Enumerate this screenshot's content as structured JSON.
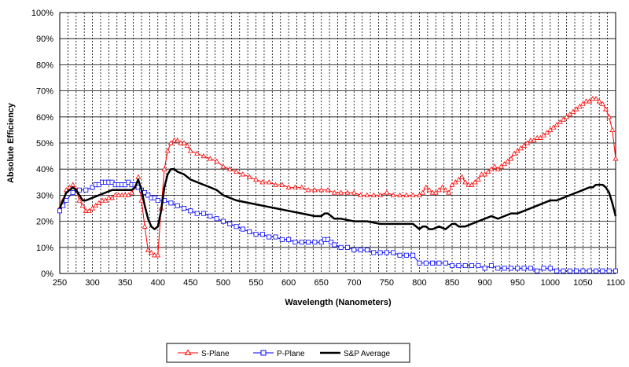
{
  "chart_data": {
    "type": "line",
    "title": "",
    "xlabel": "Wavelength (Nanometers)",
    "ylabel": "Absolute Efficiency",
    "xlim": [
      250,
      1100
    ],
    "ylim": [
      0,
      100
    ],
    "xticks": [
      250,
      300,
      350,
      400,
      450,
      500,
      550,
      600,
      650,
      700,
      750,
      800,
      850,
      900,
      950,
      1000,
      1050,
      1100
    ],
    "yticks": [
      0,
      10,
      20,
      30,
      40,
      50,
      60,
      70,
      80,
      90,
      100
    ],
    "ytick_labels": [
      "0%",
      "10%",
      "20%",
      "30%",
      "40%",
      "50%",
      "60%",
      "70%",
      "80%",
      "90%",
      "100%"
    ],
    "x_grid_step": 12.5,
    "grid": true,
    "legend_position": "bottom-center",
    "series": [
      {
        "name": "S-Plane",
        "color": "#ff0000",
        "marker": "triangle",
        "x": [
          250,
          255,
          260,
          265,
          270,
          275,
          280,
          285,
          290,
          295,
          300,
          305,
          310,
          315,
          320,
          325,
          330,
          335,
          340,
          345,
          350,
          355,
          360,
          365,
          370,
          375,
          380,
          385,
          390,
          395,
          400,
          405,
          410,
          415,
          420,
          425,
          430,
          435,
          440,
          445,
          450,
          460,
          470,
          480,
          490,
          500,
          510,
          520,
          530,
          540,
          550,
          560,
          570,
          580,
          590,
          600,
          610,
          620,
          630,
          640,
          650,
          660,
          670,
          680,
          690,
          700,
          710,
          720,
          730,
          740,
          750,
          760,
          770,
          780,
          790,
          800,
          805,
          810,
          815,
          820,
          825,
          830,
          835,
          840,
          845,
          850,
          855,
          860,
          865,
          870,
          875,
          880,
          885,
          890,
          895,
          900,
          905,
          910,
          915,
          920,
          925,
          930,
          935,
          940,
          945,
          950,
          955,
          960,
          965,
          970,
          975,
          980,
          985,
          990,
          995,
          1000,
          1005,
          1010,
          1015,
          1020,
          1025,
          1030,
          1035,
          1040,
          1045,
          1050,
          1055,
          1060,
          1065,
          1070,
          1075,
          1080,
          1085,
          1090,
          1095,
          1100
        ],
        "values": [
          25,
          28,
          32,
          33,
          34,
          32,
          28,
          26,
          24,
          24,
          25,
          26,
          27,
          28,
          28,
          29,
          29,
          30,
          30,
          30,
          30,
          30,
          31,
          33,
          37,
          28,
          18,
          9,
          8,
          7,
          7,
          25,
          40,
          47,
          50,
          51,
          51,
          50,
          50,
          49,
          47,
          46,
          45,
          44,
          43,
          41,
          40,
          39,
          38,
          37,
          36,
          35,
          35,
          34,
          34,
          33,
          33,
          33,
          32,
          32,
          32,
          32,
          31,
          31,
          31,
          31,
          30,
          30,
          30,
          30,
          31,
          30,
          30,
          30,
          30,
          30,
          31,
          33,
          32,
          31,
          31,
          32,
          33,
          32,
          31,
          34,
          35,
          36,
          37,
          35,
          34,
          34,
          35,
          36,
          38,
          38,
          39,
          40,
          41,
          40,
          41,
          42,
          43,
          44,
          46,
          47,
          48,
          49,
          50,
          51,
          51,
          52,
          52,
          53,
          54,
          55,
          56,
          57,
          58,
          59,
          60,
          61,
          62,
          63,
          64,
          65,
          66,
          66,
          67,
          67,
          66,
          65,
          63,
          60,
          55,
          44
        ]
      },
      {
        "name": "P-Plane",
        "color": "#0000ff",
        "marker": "square",
        "x": [
          250,
          255,
          260,
          270,
          280,
          290,
          300,
          305,
          310,
          315,
          320,
          325,
          330,
          335,
          340,
          345,
          350,
          355,
          360,
          365,
          370,
          375,
          380,
          385,
          390,
          395,
          400,
          410,
          420,
          430,
          440,
          450,
          460,
          470,
          480,
          490,
          500,
          510,
          520,
          530,
          540,
          550,
          560,
          570,
          580,
          590,
          600,
          610,
          620,
          630,
          640,
          650,
          655,
          660,
          665,
          670,
          680,
          690,
          700,
          710,
          720,
          730,
          740,
          750,
          760,
          770,
          780,
          790,
          800,
          810,
          820,
          830,
          840,
          850,
          860,
          870,
          880,
          890,
          900,
          910,
          920,
          930,
          940,
          950,
          960,
          970,
          980,
          990,
          1000,
          1010,
          1020,
          1030,
          1040,
          1050,
          1060,
          1070,
          1080,
          1090,
          1100
        ],
        "values": [
          24,
          26,
          28,
          31,
          32,
          32,
          33,
          34,
          34,
          35,
          35,
          35,
          35,
          34,
          34,
          34,
          34,
          35,
          34,
          34,
          33,
          32,
          31,
          30,
          29,
          29,
          28,
          28,
          27,
          26,
          25,
          24,
          23,
          23,
          22,
          21,
          20,
          19,
          18,
          17,
          16,
          15,
          15,
          14,
          14,
          13,
          13,
          12,
          12,
          12,
          12,
          12,
          13,
          13,
          12,
          11,
          10,
          10,
          9,
          9,
          9,
          8,
          8,
          8,
          8,
          7,
          7,
          7,
          4,
          4,
          4,
          4,
          4,
          3,
          3,
          3,
          3,
          3,
          2,
          3,
          2,
          2,
          2,
          2,
          2,
          2,
          1,
          2,
          2,
          1,
          1,
          1,
          1,
          1,
          1,
          1,
          1,
          1,
          1
        ]
      },
      {
        "name": "S&P Average",
        "color": "#000000",
        "marker": "none",
        "x": [
          250,
          255,
          260,
          265,
          270,
          275,
          280,
          285,
          290,
          300,
          310,
          320,
          330,
          340,
          350,
          360,
          365,
          370,
          375,
          380,
          385,
          390,
          395,
          400,
          405,
          410,
          415,
          420,
          425,
          430,
          440,
          450,
          460,
          470,
          480,
          490,
          500,
          520,
          540,
          560,
          580,
          600,
          620,
          640,
          650,
          655,
          660,
          665,
          670,
          680,
          700,
          720,
          740,
          760,
          780,
          790,
          800,
          805,
          810,
          815,
          820,
          830,
          840,
          845,
          850,
          855,
          860,
          870,
          880,
          890,
          900,
          910,
          920,
          930,
          940,
          950,
          960,
          970,
          980,
          990,
          1000,
          1010,
          1020,
          1030,
          1040,
          1050,
          1060,
          1065,
          1070,
          1075,
          1080,
          1085,
          1090,
          1095,
          1100
        ],
        "values": [
          25,
          28,
          31,
          32,
          33,
          32,
          30,
          28,
          28,
          29,
          30,
          31,
          32,
          32,
          32,
          32,
          33,
          36,
          32,
          26,
          21,
          18,
          17,
          18,
          24,
          33,
          38,
          40,
          40,
          39,
          38,
          36,
          35,
          34,
          33,
          32,
          30,
          28,
          27,
          26,
          25,
          24,
          23,
          22,
          22,
          23,
          23,
          22,
          21,
          21,
          20,
          20,
          19,
          19,
          19,
          19,
          17,
          18,
          18,
          17,
          17,
          18,
          17,
          18,
          19,
          19,
          18,
          18,
          19,
          20,
          21,
          22,
          21,
          22,
          23,
          23,
          24,
          25,
          26,
          27,
          28,
          28,
          29,
          30,
          31,
          32,
          33,
          33,
          34,
          34,
          34,
          33,
          31,
          27,
          22
        ]
      }
    ]
  }
}
